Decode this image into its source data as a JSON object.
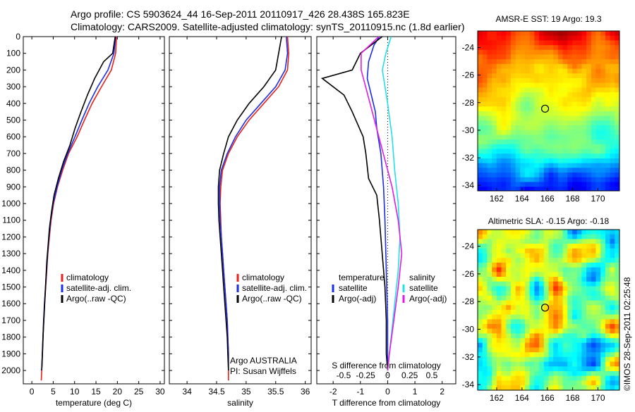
{
  "header": {
    "line1": "Argo profile: CS 5903624_44 16-Sep-2011 20110917_426 28.438S 165.823E",
    "line2": "Climatology: CARS2009. Satellite-adjusted climatology: synTS_20110915.nc (1.8d earlier)"
  },
  "footer": {
    "credit": "Argo AUSTRALIA",
    "pi": "PI: Susan Wijffels",
    "timestamp": "©IMOS 28-Sep-2011 02:25:48"
  },
  "colors": {
    "climatology": "#e8211d",
    "satellite": "#1a2ee6",
    "argo": "#000000",
    "satellite_salinity": "#22e0ea",
    "argo_salinity": "#e21be6"
  },
  "chart_data": [
    {
      "type": "line",
      "xlabel": "temperature (deg C)",
      "ylabel": "",
      "xlim": [
        -2,
        31
      ],
      "ylim": [
        2080,
        0
      ],
      "x_ticks": [
        0,
        5,
        10,
        15,
        20,
        25,
        30
      ],
      "y_ticks": [
        0,
        100,
        200,
        300,
        400,
        500,
        600,
        700,
        800,
        900,
        1000,
        1100,
        1200,
        1300,
        1400,
        1500,
        1600,
        1700,
        1800,
        1900,
        2000
      ],
      "legend": {
        "placement": "bottom-left",
        "entries": [
          "climatology",
          "satellite-adj. clim.",
          "Argo(..raw -QC)"
        ]
      },
      "series": [
        {
          "name": "climatology",
          "color": "#e8211d",
          "points": [
            [
              19.8,
              0
            ],
            [
              19.6,
              100
            ],
            [
              18.6,
              200
            ],
            [
              16.3,
              300
            ],
            [
              14.1,
              400
            ],
            [
              12.3,
              500
            ],
            [
              10.6,
              600
            ],
            [
              8.6,
              700
            ],
            [
              7.2,
              800
            ],
            [
              6.0,
              900
            ],
            [
              5.1,
              1000
            ],
            [
              4.5,
              1100
            ],
            [
              4.1,
              1200
            ],
            [
              3.75,
              1300
            ],
            [
              3.5,
              1400
            ],
            [
              3.25,
              1500
            ],
            [
              3.0,
              1600
            ],
            [
              2.8,
              1700
            ],
            [
              2.6,
              1800
            ],
            [
              2.45,
              1900
            ],
            [
              2.3,
              2000
            ],
            [
              2.2,
              2060
            ]
          ]
        },
        {
          "name": "satellite-adj. clim.",
          "color": "#1a2ee6",
          "points": [
            [
              19.6,
              0
            ],
            [
              19.2,
              100
            ],
            [
              17.8,
              200
            ],
            [
              15.4,
              300
            ],
            [
              13.4,
              400
            ],
            [
              11.7,
              500
            ],
            [
              10.1,
              600
            ],
            [
              8.4,
              700
            ],
            [
              7.0,
              800
            ],
            [
              5.9,
              900
            ],
            [
              5.0,
              1000
            ],
            [
              4.4,
              1100
            ],
            [
              4.0,
              1200
            ],
            [
              3.7,
              1300
            ],
            [
              3.45,
              1400
            ],
            [
              3.2,
              1500
            ],
            [
              2.95,
              1600
            ],
            [
              2.75,
              1700
            ],
            [
              2.6,
              1800
            ],
            [
              2.45,
              1900
            ],
            [
              2.3,
              2000
            ]
          ]
        },
        {
          "name": "Argo(..raw -QC)",
          "color": "#000000",
          "points": [
            [
              19.5,
              0
            ],
            [
              18.9,
              100
            ],
            [
              16.8,
              150
            ],
            [
              14.7,
              250
            ],
            [
              13.0,
              350
            ],
            [
              11.5,
              450
            ],
            [
              10.1,
              550
            ],
            [
              8.9,
              650
            ],
            [
              7.4,
              750
            ],
            [
              6.2,
              850
            ],
            [
              5.2,
              950
            ],
            [
              4.6,
              1050
            ],
            [
              4.1,
              1150
            ],
            [
              3.8,
              1250
            ],
            [
              3.5,
              1350
            ],
            [
              3.3,
              1450
            ],
            [
              3.1,
              1550
            ],
            [
              2.9,
              1650
            ],
            [
              2.7,
              1750
            ],
            [
              2.55,
              1850
            ],
            [
              2.4,
              1950
            ],
            [
              2.3,
              2000
            ]
          ]
        }
      ]
    },
    {
      "type": "line",
      "xlabel": "salinity",
      "ylabel": "",
      "xlim": [
        33.7,
        36.1
      ],
      "ylim": [
        2080,
        0
      ],
      "x_ticks": [
        34,
        34.5,
        35,
        35.5,
        36
      ],
      "x_tick_labels": [
        "34",
        "34.5",
        "35",
        "35.5",
        "36"
      ],
      "legend": {
        "placement": "bottom-right",
        "entries": [
          "climatology",
          "satellite-adj. clim.",
          "Argo(..raw -QC)"
        ]
      },
      "series": [
        {
          "name": "climatology",
          "color": "#e8211d",
          "points": [
            [
              35.7,
              0
            ],
            [
              35.72,
              100
            ],
            [
              35.7,
              200
            ],
            [
              35.55,
              300
            ],
            [
              35.3,
              400
            ],
            [
              35.05,
              500
            ],
            [
              34.85,
              600
            ],
            [
              34.7,
              700
            ],
            [
              34.6,
              800
            ],
            [
              34.57,
              900
            ],
            [
              34.56,
              1000
            ],
            [
              34.57,
              1100
            ],
            [
              34.58,
              1200
            ],
            [
              34.6,
              1300
            ],
            [
              34.62,
              1400
            ],
            [
              34.64,
              1500
            ],
            [
              34.66,
              1600
            ],
            [
              34.68,
              1700
            ],
            [
              34.69,
              1800
            ],
            [
              34.7,
              1900
            ],
            [
              34.7,
              2060
            ]
          ]
        },
        {
          "name": "satellite-adj. clim.",
          "color": "#1a2ee6",
          "points": [
            [
              35.68,
              0
            ],
            [
              35.7,
              100
            ],
            [
              35.66,
              200
            ],
            [
              35.5,
              300
            ],
            [
              35.25,
              400
            ],
            [
              35.0,
              500
            ],
            [
              34.82,
              600
            ],
            [
              34.68,
              700
            ],
            [
              34.58,
              800
            ],
            [
              34.55,
              900
            ],
            [
              34.55,
              1000
            ],
            [
              34.56,
              1100
            ],
            [
              34.58,
              1200
            ],
            [
              34.6,
              1300
            ],
            [
              34.62,
              1400
            ],
            [
              34.64,
              1500
            ],
            [
              34.66,
              1600
            ],
            [
              34.68,
              1700
            ],
            [
              34.69,
              1800
            ],
            [
              34.7,
              1900
            ],
            [
              34.7,
              2000
            ]
          ]
        },
        {
          "name": "Argo(..raw -QC)",
          "color": "#000000",
          "points": [
            [
              35.6,
              0
            ],
            [
              35.55,
              100
            ],
            [
              35.5,
              200
            ],
            [
              35.3,
              300
            ],
            [
              35.05,
              400
            ],
            [
              34.85,
              500
            ],
            [
              34.7,
              600
            ],
            [
              34.62,
              700
            ],
            [
              34.55,
              800
            ],
            [
              34.53,
              900
            ],
            [
              34.53,
              1000
            ],
            [
              34.54,
              1100
            ],
            [
              34.56,
              1200
            ],
            [
              34.58,
              1300
            ],
            [
              34.6,
              1400
            ],
            [
              34.62,
              1500
            ],
            [
              34.64,
              1600
            ],
            [
              34.66,
              1700
            ],
            [
              34.68,
              1800
            ],
            [
              34.69,
              1900
            ],
            [
              34.7,
              2000
            ]
          ]
        }
      ]
    },
    {
      "type": "line",
      "xlabel": "T difference from climatology",
      "x2label": "S difference from climatology",
      "xlim": [
        -2.6,
        2.5
      ],
      "ylim": [
        2080,
        0
      ],
      "x_ticks": [
        -2,
        -1,
        0,
        1,
        2
      ],
      "x_tick_labels": [
        "-2",
        "-1",
        "0",
        "1",
        "2"
      ],
      "x2_ticks": [
        -0.5,
        -0.25,
        0,
        0.25,
        0.5
      ],
      "x2_tick_labels": [
        "-0.5",
        "-0.25",
        "0",
        "0.25",
        "0.5"
      ],
      "legend": {
        "placement": "bottom",
        "groups": [
          {
            "title": "temperature",
            "entries": [
              "satellite",
              "Argo(-adj)"
            ]
          },
          {
            "title": "salinity",
            "entries": [
              "satellite",
              "Argo(-adj)"
            ]
          }
        ]
      },
      "series": [
        {
          "name": "satellite",
          "group": "temperature",
          "color": "#1a2ee6",
          "points": [
            [
              -0.3,
              0
            ],
            [
              -0.5,
              50
            ],
            [
              -0.7,
              150
            ],
            [
              -0.75,
              250
            ],
            [
              -0.6,
              350
            ],
            [
              -0.45,
              450
            ],
            [
              -0.4,
              550
            ],
            [
              -0.25,
              700
            ],
            [
              -0.15,
              900
            ],
            [
              -0.1,
              1100
            ],
            [
              -0.05,
              1400
            ],
            [
              0,
              1700
            ],
            [
              0,
              2000
            ]
          ]
        },
        {
          "name": "Argo(-adj)",
          "group": "temperature",
          "color": "#000000",
          "points": [
            [
              -0.2,
              0
            ],
            [
              -1.0,
              100
            ],
            [
              -1.3,
              200
            ],
            [
              -2.4,
              250
            ],
            [
              -1.6,
              350
            ],
            [
              -1.3,
              450
            ],
            [
              -0.9,
              600
            ],
            [
              -0.8,
              700
            ],
            [
              -0.7,
              850
            ],
            [
              -0.4,
              950
            ],
            [
              -0.3,
              1100
            ],
            [
              -0.2,
              1300
            ],
            [
              -0.1,
              1500
            ],
            [
              -0.05,
              1700
            ],
            [
              -0.05,
              1900
            ],
            [
              0,
              2000
            ]
          ]
        },
        {
          "name": "satellite",
          "group": "salinity",
          "color": "#22e0ea",
          "points": [
            [
              0.04,
              0
            ],
            [
              -0.02,
              100
            ],
            [
              -0.06,
              200
            ],
            [
              0.0,
              400
            ],
            [
              0.05,
              600
            ],
            [
              0.08,
              800
            ],
            [
              0.12,
              1000
            ],
            [
              0.14,
              1200
            ],
            [
              0.12,
              1400
            ],
            [
              0.08,
              1600
            ],
            [
              0.04,
              1800
            ],
            [
              0,
              2000
            ]
          ]
        },
        {
          "name": "Argo(-adj)",
          "group": "salinity",
          "color": "#e21be6",
          "points": [
            [
              -0.1,
              0
            ],
            [
              -0.3,
              100
            ],
            [
              -0.3,
              200
            ],
            [
              -0.25,
              300
            ],
            [
              -0.15,
              500
            ],
            [
              -0.05,
              700
            ],
            [
              0.05,
              900
            ],
            [
              0.12,
              1100
            ],
            [
              0.16,
              1300
            ],
            [
              0.12,
              1500
            ],
            [
              0.07,
              1700
            ],
            [
              0.02,
              1900
            ],
            [
              0,
              2000
            ]
          ]
        }
      ]
    },
    {
      "type": "heatmap",
      "title": "AMSR-E SST: 19 Argo: 19.3",
      "xlim": [
        160.5,
        171.7
      ],
      "ylim": [
        -34.4,
        -22.8
      ],
      "x_ticks": [
        162,
        164,
        166,
        168,
        170
      ],
      "y_ticks": [
        -24,
        -26,
        -28,
        -30,
        -32,
        -34
      ],
      "marker": {
        "lon": 165.823,
        "lat": -28.438
      }
    },
    {
      "type": "heatmap",
      "title": "Altimetric SLA: -0.15 Argo: -0.18",
      "xlim": [
        160.5,
        171.7
      ],
      "ylim": [
        -34.4,
        -22.8
      ],
      "x_ticks": [
        162,
        164,
        166,
        168,
        170
      ],
      "y_ticks": [
        -24,
        -26,
        -28,
        -30,
        -32,
        -34
      ],
      "marker": {
        "lon": 165.823,
        "lat": -28.438
      }
    }
  ]
}
